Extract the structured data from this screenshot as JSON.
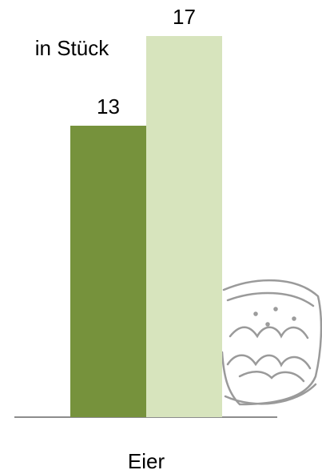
{
  "chart_data": {
    "type": "bar",
    "annotation": "in Stück",
    "categories": [
      "Eier"
    ],
    "series": [
      {
        "color": "#76923c",
        "values": [
          13
        ]
      },
      {
        "color": "#d7e4bd",
        "values": [
          17
        ]
      }
    ]
  }
}
